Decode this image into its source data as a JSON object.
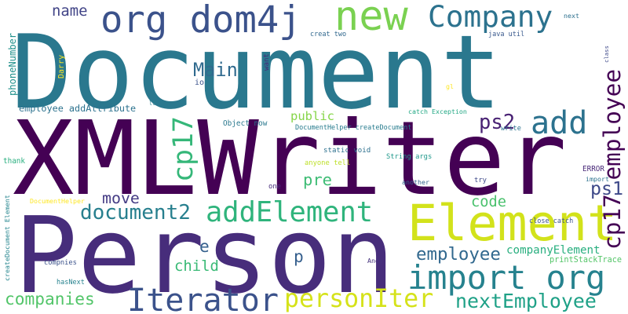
{
  "words": [
    {
      "text": "Document",
      "color": "#2a788e"
    },
    {
      "text": "XMLWriter",
      "color": "#440154"
    },
    {
      "text": "Person",
      "color": "#472d7b"
    },
    {
      "text": "new",
      "color": "#7ad151"
    },
    {
      "text": "Element",
      "color": "#d2e21b"
    },
    {
      "text": "import org",
      "color": "#26828e"
    },
    {
      "text": "org dom4j",
      "color": "#3b528b"
    },
    {
      "text": "Company",
      "color": "#2c728e"
    },
    {
      "text": "Iterator",
      "color": "#3b528b"
    },
    {
      "text": "addElement",
      "color": "#2fb47c"
    },
    {
      "text": "add",
      "color": "#2c728e"
    },
    {
      "text": "cp17",
      "color": "#35b779"
    },
    {
      "text": "cp17 employee",
      "color": "#440154"
    },
    {
      "text": "personIter",
      "color": "#d5e21a"
    },
    {
      "text": "nextEmployee",
      "color": "#1fa187"
    },
    {
      "text": "companies",
      "color": "#52c569"
    },
    {
      "text": "document2",
      "color": "#277f8e"
    },
    {
      "text": "employee",
      "color": "#31688e"
    },
    {
      "text": "companyElement",
      "color": "#29af7f"
    },
    {
      "text": "Main",
      "color": "#306a8e"
    },
    {
      "text": "public",
      "color": "#86d549"
    },
    {
      "text": "ps2",
      "color": "#482173"
    },
    {
      "text": "ps1",
      "color": "#3e4989"
    },
    {
      "text": "move",
      "color": "#443b84"
    },
    {
      "text": "child",
      "color": "#3aba76"
    },
    {
      "text": "code",
      "color": "#4ac16d"
    },
    {
      "text": "pre",
      "color": "#3dbc74"
    },
    {
      "text": "name",
      "color": "#414487"
    },
    {
      "text": "phoneNumber",
      "color": "#21918c"
    },
    {
      "text": "e",
      "color": "#35608d"
    },
    {
      "text": "p",
      "color": "#355f8d"
    },
    {
      "text": "employee addAttribute",
      "color": "#2c728e"
    },
    {
      "text": "DocumentHelper createDocument",
      "color": "#287c8e"
    },
    {
      "text": "Object now",
      "color": "#2a788e"
    },
    {
      "text": "static void",
      "color": "#2d708e"
    },
    {
      "text": "String args",
      "color": "#1f988b"
    },
    {
      "text": "catch Exception",
      "color": "#22a884"
    },
    {
      "text": "close catch",
      "color": "#3b528b"
    },
    {
      "text": "printStackTrace",
      "color": "#54c568"
    },
    {
      "text": "createDocument Element",
      "color": "#25858e"
    },
    {
      "text": "DocumentHelper",
      "color": "#fde725"
    },
    {
      "text": "compnies",
      "color": "#3b528b"
    },
    {
      "text": "hasNext",
      "color": "#26828e"
    },
    {
      "text": "Andy",
      "color": "#46337e"
    },
    {
      "text": "another",
      "color": "#33638d"
    },
    {
      "text": "anyone tell",
      "color": "#bddf26"
    },
    {
      "text": "thank",
      "color": "#29af7f"
    },
    {
      "text": "creat two",
      "color": "#31688e"
    },
    {
      "text": "java util",
      "color": "#38588c"
    },
    {
      "text": "next",
      "color": "#2d708e"
    },
    {
      "text": "class",
      "color": "#3e4989"
    },
    {
      "text": "want",
      "color": "#482878"
    },
    {
      "text": "Darry",
      "color": "#fde725"
    },
    {
      "text": "gl",
      "color": "#fde725"
    },
    {
      "text": "io",
      "color": "#3b528b"
    },
    {
      "text": "lt",
      "color": "#287c8e"
    },
    {
      "text": "write",
      "color": "#2c728e"
    },
    {
      "text": "try",
      "color": "#3e4989"
    },
    {
      "text": "one",
      "color": "#472d7b"
    },
    {
      "text": "ERROR",
      "color": "#482878"
    },
    {
      "text": "import",
      "color": "#2c728e"
    }
  ]
}
